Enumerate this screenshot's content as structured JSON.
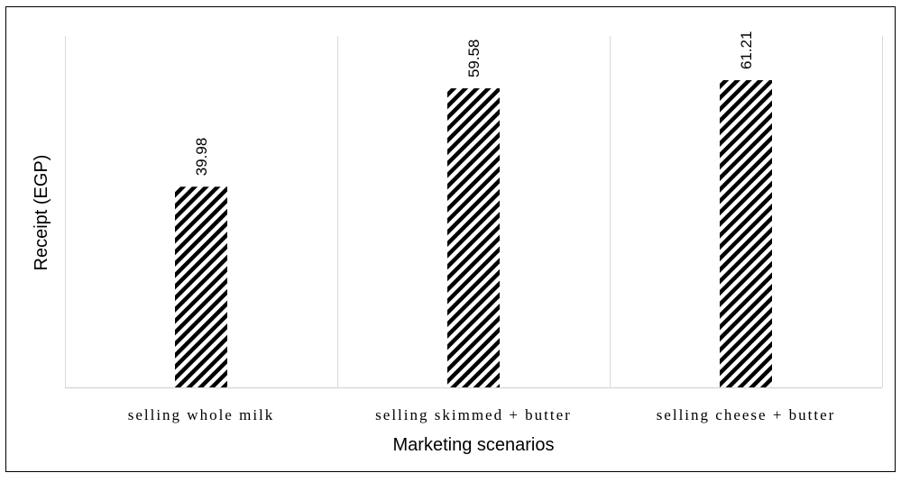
{
  "chart_data": {
    "type": "bar",
    "categories": [
      "selling whole milk",
      "selling skimmed + butter",
      "selling cheese + butter"
    ],
    "values": [
      39.98,
      59.58,
      61.21
    ],
    "data_labels": [
      "39.98",
      "59.58",
      "61.21"
    ],
    "title": "",
    "xlabel": "Marketing scenarios",
    "ylabel": "Receipt (EGP)",
    "ylim": [
      0,
      70
    ],
    "grid": false,
    "category_dividers": true,
    "bar_pattern": "diagonal-hatch",
    "colors": {
      "bar": "#000000",
      "hatch_background": "#ffffff",
      "axis": "#d9d9d9",
      "frame": "#000000"
    }
  }
}
